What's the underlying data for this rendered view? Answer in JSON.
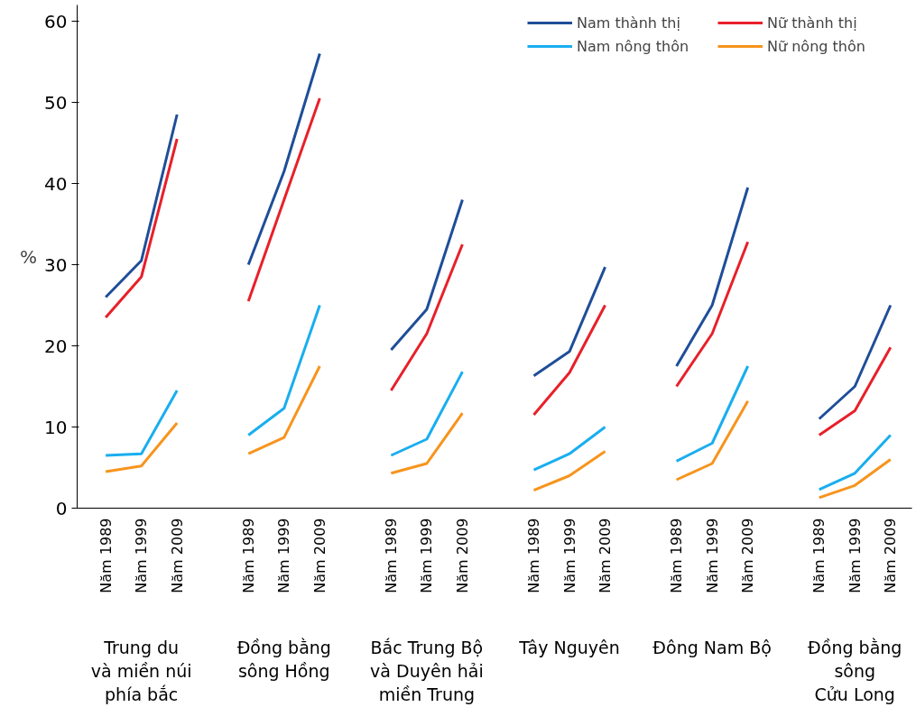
{
  "chart_data": {
    "type": "line",
    "ylabel": "%",
    "categories": [
      "Năm 1989",
      "Năm 1999",
      "Năm 2009",
      null,
      "Năm 1989",
      "Năm 1999",
      "Năm 2009",
      null,
      "Năm 1989",
      "Năm 1999",
      "Năm 2009",
      null,
      "Năm 1989",
      "Năm 1999",
      "Năm 2009",
      null,
      "Năm 1989",
      "Năm 1999",
      "Năm 2009",
      null,
      "Năm 1989",
      "Năm 1999",
      "Năm 2009"
    ],
    "series": [
      {
        "name": "Nam thành thị",
        "color": "#1f4e99",
        "values": [
          26,
          30.5,
          48.5,
          null,
          30,
          41.5,
          56,
          null,
          19.5,
          24.5,
          38,
          null,
          16.3,
          19.3,
          29.7,
          null,
          17.5,
          25,
          39.5,
          null,
          11,
          15,
          25
        ]
      },
      {
        "name": "Nữ thành thị",
        "color": "#e8202a",
        "values": [
          23.5,
          28.5,
          45.5,
          null,
          25.5,
          38,
          50.5,
          null,
          14.5,
          21.5,
          32.5,
          null,
          11.5,
          16.7,
          25,
          null,
          15,
          21.5,
          32.8,
          null,
          9,
          12,
          19.8
        ]
      },
      {
        "name": "Nam nông thôn",
        "color": "#19aeef",
        "values": [
          6.5,
          6.7,
          14.5,
          null,
          9,
          12.3,
          25,
          null,
          6.5,
          8.5,
          16.8,
          null,
          4.7,
          6.7,
          10,
          null,
          5.8,
          8,
          17.5,
          null,
          2.3,
          4.3,
          9
        ]
      },
      {
        "name": "Nữ nông thôn",
        "color": "#f7941d",
        "values": [
          4.5,
          5.2,
          10.5,
          null,
          6.7,
          8.7,
          17.5,
          null,
          4.3,
          5.5,
          11.7,
          null,
          2.2,
          4,
          7,
          null,
          3.5,
          5.5,
          13.2,
          null,
          1.3,
          2.8,
          6
        ]
      }
    ],
    "annotations": [
      "Trung du\nvà miền núi\nphía bắc",
      "Đồng bằng\nsông Hồng",
      "Bắc Trung Bộ\nvà Duyên hải\nmiền Trung",
      "Tây Nguyên",
      "Đông Nam Bộ",
      "Đồng bằng\nsông\nCửu Long"
    ],
    "ylim": [
      0,
      62
    ],
    "yticks": [
      0,
      10,
      20,
      30,
      40,
      50,
      60
    ],
    "grid": false,
    "legend": "top right",
    "line_style": "solid"
  }
}
